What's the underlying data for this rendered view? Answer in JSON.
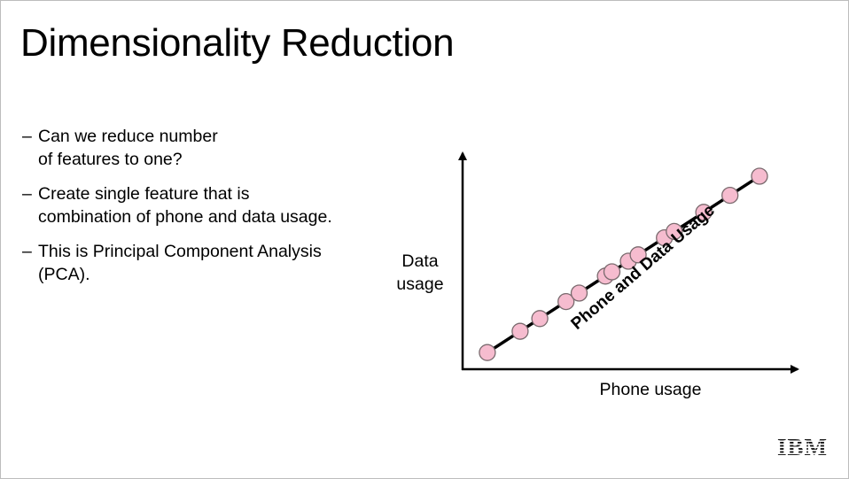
{
  "slide": {
    "title": "Dimensionality Reduction",
    "bullets": [
      {
        "dash": "–",
        "lines": [
          "Can we reduce number",
          "of features to one?"
        ]
      },
      {
        "dash": "–",
        "lines": [
          "Create single feature that is",
          "combination of phone and data usage."
        ]
      },
      {
        "dash": "–",
        "lines": [
          "This is Principal Component Analysis",
          "(PCA)."
        ]
      }
    ],
    "logo_text": "IBM"
  },
  "chart_data": {
    "type": "scatter",
    "title": "",
    "xlabel": "Phone usage",
    "ylabel_lines": [
      "Data",
      "usage"
    ],
    "line_label": "Phone and Data Usage",
    "x": [
      0.07,
      0.17,
      0.23,
      0.31,
      0.35,
      0.43,
      0.45,
      0.5,
      0.53,
      0.61,
      0.64,
      0.73,
      0.81,
      0.9
    ],
    "y": [
      0.07,
      0.17,
      0.23,
      0.31,
      0.35,
      0.43,
      0.45,
      0.5,
      0.53,
      0.61,
      0.64,
      0.73,
      0.81,
      0.9
    ],
    "fit_line": {
      "x": [
        0.05,
        0.92
      ],
      "y": [
        0.05,
        0.92
      ]
    },
    "marker_fill": "#f6bccf",
    "marker_stroke": "#7a6a6e",
    "grid": false,
    "legend": "none"
  }
}
